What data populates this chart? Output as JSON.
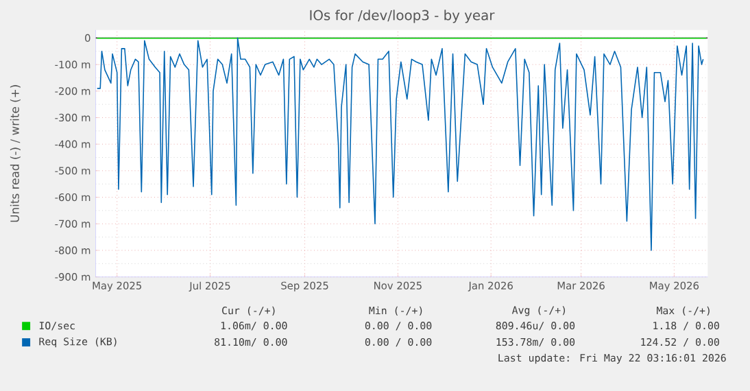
{
  "chart_data": {
    "type": "line",
    "title": "IOs for /dev/loop3 - by year",
    "ylabel": "Units read (-) / write (+)",
    "xlim": [
      "2025-04-17",
      "2026-05-23"
    ],
    "ylim": [
      -900,
      30
    ],
    "xticks": [
      {
        "value": "2025-05-01",
        "label": "May 2025"
      },
      {
        "value": "2025-07-01",
        "label": "Jul 2025"
      },
      {
        "value": "2025-09-01",
        "label": "Sep 2025"
      },
      {
        "value": "2025-11-01",
        "label": "Nov 2025"
      },
      {
        "value": "2026-01-01",
        "label": "Jan 2026"
      },
      {
        "value": "2026-03-01",
        "label": "Mar 2026"
      },
      {
        "value": "2026-05-01",
        "label": "May 2026"
      }
    ],
    "yticks": [
      {
        "value": -900,
        "label": "-900 m"
      },
      {
        "value": -800,
        "label": "-800 m"
      },
      {
        "value": -700,
        "label": "-700 m"
      },
      {
        "value": -600,
        "label": "-600 m"
      },
      {
        "value": -500,
        "label": "-500 m"
      },
      {
        "value": -400,
        "label": "-400 m"
      },
      {
        "value": -300,
        "label": "-300 m"
      },
      {
        "value": -200,
        "label": "-200 m"
      },
      {
        "value": -100,
        "label": "-100 m"
      },
      0
    ],
    "grid": true,
    "legend": "bottom",
    "marker": "none",
    "line_style": "solid",
    "ref_lines": [
      {
        "axis": "y",
        "value": 0,
        "color": "#000000"
      }
    ],
    "series": [
      {
        "name": "IO/sec",
        "color": "#00cc00",
        "x": [
          "2025-04-18",
          "2026-05-22"
        ],
        "values": [
          -1,
          -1
        ]
      },
      {
        "name": "Req Size (KB)",
        "color": "#0066b3",
        "x": [
          "2025-04-18",
          "2025-04-20",
          "2025-04-21",
          "2025-04-23",
          "2025-04-27",
          "2025-04-28",
          "2025-05-01",
          "2025-05-02",
          "2025-05-04",
          "2025-05-06",
          "2025-05-08",
          "2025-05-10",
          "2025-05-13",
          "2025-05-15",
          "2025-05-17",
          "2025-05-19",
          "2025-05-22",
          "2025-05-26",
          "2025-05-29",
          "2025-05-30",
          "2025-06-01",
          "2025-06-03",
          "2025-06-05",
          "2025-06-08",
          "2025-06-11",
          "2025-06-14",
          "2025-06-17",
          "2025-06-20",
          "2025-06-23",
          "2025-06-26",
          "2025-06-29",
          "2025-07-02",
          "2025-07-03",
          "2025-07-06",
          "2025-07-09",
          "2025-07-12",
          "2025-07-15",
          "2025-07-18",
          "2025-07-19",
          "2025-07-21",
          "2025-07-24",
          "2025-07-27",
          "2025-07-29",
          "2025-07-31",
          "2025-08-03",
          "2025-08-06",
          "2025-08-11",
          "2025-08-15",
          "2025-08-18",
          "2025-08-20",
          "2025-08-22",
          "2025-08-25",
          "2025-08-27",
          "2025-08-29",
          "2025-08-31",
          "2025-09-04",
          "2025-09-07",
          "2025-09-09",
          "2025-09-12",
          "2025-09-17",
          "2025-09-20",
          "2025-09-23",
          "2025-09-24",
          "2025-09-25",
          "2025-09-28",
          "2025-09-30",
          "2025-10-02",
          "2025-10-04",
          "2025-10-09",
          "2025-10-13",
          "2025-10-17",
          "2025-10-19",
          "2025-10-22",
          "2025-10-26",
          "2025-10-29",
          "2025-10-31",
          "2025-11-03",
          "2025-11-07",
          "2025-11-10",
          "2025-11-13",
          "2025-11-17",
          "2025-11-21",
          "2025-11-23",
          "2025-11-26",
          "2025-11-30",
          "2025-12-04",
          "2025-12-07",
          "2025-12-10",
          "2025-12-15",
          "2025-12-19",
          "2025-12-23",
          "2025-12-27",
          "2025-12-29",
          "2026-01-02",
          "2026-01-08",
          "2026-01-12",
          "2026-01-17",
          "2026-01-20",
          "2026-01-23",
          "2026-01-26",
          "2026-01-29",
          "2026-02-01",
          "2026-02-03",
          "2026-02-05",
          "2026-02-10",
          "2026-02-12",
          "2026-02-15",
          "2026-02-17",
          "2026-02-20",
          "2026-02-24",
          "2026-02-26",
          "2026-03-03",
          "2026-03-07",
          "2026-03-10",
          "2026-03-14",
          "2026-03-16",
          "2026-03-20",
          "2026-03-23",
          "2026-03-27",
          "2026-03-31",
          "2026-04-03",
          "2026-04-07",
          "2026-04-10",
          "2026-04-13",
          "2026-04-16",
          "2026-04-18",
          "2026-04-22",
          "2026-04-25",
          "2026-04-27",
          "2026-04-30",
          "2026-05-03",
          "2026-05-06",
          "2026-05-09",
          "2026-05-11",
          "2026-05-13",
          "2026-05-15",
          "2026-05-17",
          "2026-05-19",
          "2026-05-20"
        ],
        "values": [
          -190,
          -190,
          -50,
          -120,
          -170,
          -60,
          -130,
          -570,
          -40,
          -40,
          -180,
          -120,
          -80,
          -90,
          -580,
          -10,
          -80,
          -110,
          -130,
          -620,
          -50,
          -590,
          -70,
          -110,
          -60,
          -100,
          -120,
          -560,
          -10,
          -110,
          -80,
          -590,
          -200,
          -80,
          -100,
          -170,
          -60,
          -630,
          0,
          -80,
          -80,
          -110,
          -510,
          -100,
          -140,
          -100,
          -90,
          -140,
          -80,
          -550,
          -80,
          -70,
          -600,
          -80,
          -120,
          -80,
          -110,
          -80,
          -100,
          -80,
          -100,
          -400,
          -640,
          -260,
          -100,
          -620,
          -110,
          -60,
          -90,
          -100,
          -700,
          -80,
          -80,
          -50,
          -600,
          -230,
          -90,
          -230,
          -80,
          -90,
          -100,
          -310,
          -80,
          -140,
          -40,
          -580,
          -60,
          -540,
          -60,
          -90,
          -100,
          -250,
          -40,
          -110,
          -170,
          -90,
          -40,
          -480,
          -80,
          -130,
          -670,
          -180,
          -590,
          -100,
          -630,
          -120,
          -20,
          -340,
          -120,
          -650,
          -60,
          -120,
          -290,
          -70,
          -550,
          -60,
          -100,
          -50,
          -110,
          -690,
          -270,
          -110,
          -300,
          -110,
          -800,
          -130,
          -130,
          -240,
          -160,
          -550,
          -30,
          -140,
          -30,
          -570,
          -20,
          -680,
          -30,
          -100,
          -80
        ]
      }
    ],
    "annotations": [
      "Cur (-/+)",
      "Min (-/+)",
      "Avg (-/+)",
      "Max (-/+)",
      "1.06m/  0.00",
      "0.00 /  0.00",
      "809.46u/  0.00",
      "1.18 /  0.00",
      "81.10m/  0.00",
      "0.00 /  0.00",
      "153.78m/  0.00",
      "124.52 /  0.00",
      "Last update: Fri May 22 03:16:01 2026"
    ]
  }
}
